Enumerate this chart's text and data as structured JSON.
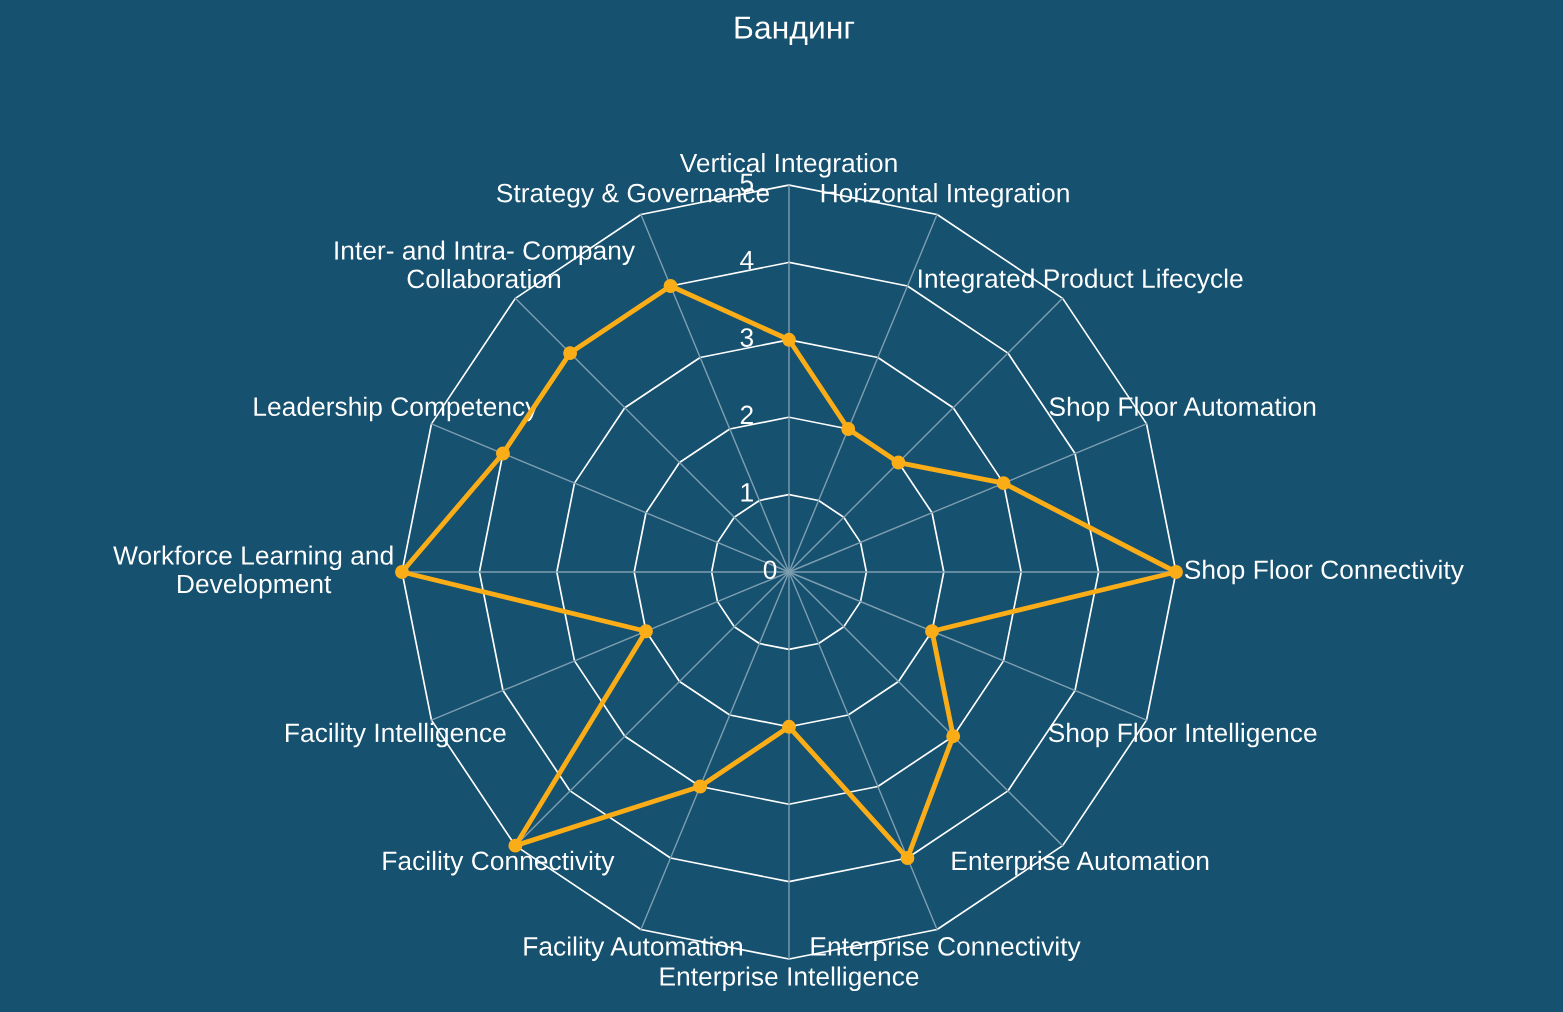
{
  "chart_data": {
    "type": "radar",
    "title": "Бандинг",
    "categories": [
      "Vertical Integration",
      "Horizontal Integration",
      "Integrated Product Lifecycle",
      "Shop Floor Automation",
      "Shop Floor Connectivity",
      "Shop Floor Intelligence",
      "Enterprise Automation",
      "Enterprise Connectivity",
      "Enterprise Intelligence",
      "Facility Automation",
      "Facility Connectivity",
      "Facility Intelligence",
      "Workforce Learning and\nDevelopment",
      "Leadership Competency",
      "Inter- and Intra- Company\nCollaboration",
      "Strategy & Governance"
    ],
    "series": [
      {
        "color": "#fbad18",
        "values": [
          3,
          2,
          2,
          3,
          5,
          2,
          3,
          4,
          2,
          3,
          5,
          2,
          5,
          4,
          4,
          4
        ]
      }
    ],
    "ylim": [
      0,
      5
    ],
    "yticks": [
      0,
      1,
      2,
      3,
      4,
      5
    ],
    "grid": true,
    "marker": "circle",
    "line_style": "solid"
  }
}
